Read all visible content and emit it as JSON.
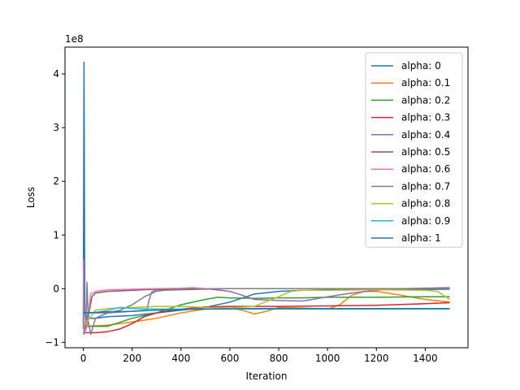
{
  "chart_data": {
    "type": "line",
    "title": "",
    "xlabel": "Iteration",
    "ylabel": "Loss",
    "y_offset_label": "1e8",
    "xlim": [
      -75,
      1575
    ],
    "ylim": [
      -1.1,
      4.5
    ],
    "x_ticks": [
      0,
      200,
      400,
      600,
      800,
      1000,
      1200,
      1400
    ],
    "y_ticks": [
      -1,
      0,
      1,
      2,
      3,
      4
    ],
    "legend_position": "upper right",
    "series": [
      {
        "name": "alpha: 0",
        "color": "#1f77b4",
        "points": [
          [
            0,
            -0.75
          ],
          [
            3,
            4.22
          ],
          [
            6,
            -0.4
          ],
          [
            10,
            -0.6
          ],
          [
            20,
            -0.55
          ],
          [
            50,
            -0.55
          ],
          [
            100,
            -0.52
          ],
          [
            200,
            -0.5
          ],
          [
            300,
            -0.45
          ],
          [
            400,
            -0.4
          ],
          [
            500,
            -0.35
          ],
          [
            600,
            -0.25
          ],
          [
            700,
            -0.1
          ],
          [
            800,
            -0.05
          ],
          [
            900,
            -0.03
          ],
          [
            1000,
            -0.02
          ],
          [
            1200,
            -0.02
          ],
          [
            1500,
            -0.01
          ]
        ]
      },
      {
        "name": "alpha: 0.1",
        "color": "#ff7f0e",
        "points": [
          [
            0,
            -0.7
          ],
          [
            100,
            -0.68
          ],
          [
            200,
            -0.62
          ],
          [
            300,
            -0.55
          ],
          [
            400,
            -0.45
          ],
          [
            500,
            -0.38
          ],
          [
            600,
            -0.36
          ],
          [
            650,
            -0.4
          ],
          [
            700,
            -0.47
          ],
          [
            750,
            -0.42
          ],
          [
            800,
            -0.35
          ],
          [
            900,
            -0.36
          ],
          [
            1000,
            -0.38
          ],
          [
            1050,
            -0.3
          ],
          [
            1100,
            -0.12
          ],
          [
            1150,
            -0.05
          ],
          [
            1200,
            -0.05
          ],
          [
            1300,
            -0.12
          ],
          [
            1400,
            -0.2
          ],
          [
            1500,
            -0.25
          ]
        ]
      },
      {
        "name": "alpha: 0.2",
        "color": "#2ca02c",
        "points": [
          [
            0,
            -0.7
          ],
          [
            100,
            -0.7
          ],
          [
            200,
            -0.55
          ],
          [
            300,
            -0.45
          ],
          [
            400,
            -0.3
          ],
          [
            500,
            -0.2
          ],
          [
            550,
            -0.16
          ],
          [
            600,
            -0.17
          ],
          [
            700,
            -0.18
          ],
          [
            800,
            -0.17
          ],
          [
            900,
            -0.17
          ],
          [
            1000,
            -0.16
          ],
          [
            1200,
            -0.16
          ],
          [
            1400,
            -0.15
          ],
          [
            1500,
            -0.15
          ]
        ]
      },
      {
        "name": "alpha: 0.3",
        "color": "#d62728",
        "points": [
          [
            0,
            -0.82
          ],
          [
            50,
            -0.82
          ],
          [
            100,
            -0.8
          ],
          [
            150,
            -0.75
          ],
          [
            200,
            -0.65
          ],
          [
            250,
            -0.52
          ],
          [
            300,
            -0.45
          ],
          [
            400,
            -0.38
          ],
          [
            500,
            -0.34
          ],
          [
            600,
            -0.33
          ],
          [
            800,
            -0.33
          ],
          [
            1000,
            -0.32
          ],
          [
            1200,
            -0.31
          ],
          [
            1400,
            -0.28
          ],
          [
            1500,
            -0.26
          ]
        ]
      },
      {
        "name": "alpha: 0.4",
        "color": "#9467bd",
        "points": [
          [
            0,
            -0.75
          ],
          [
            20,
            -0.45
          ],
          [
            50,
            -0.45
          ],
          [
            100,
            -0.45
          ],
          [
            200,
            -0.42
          ],
          [
            260,
            -0.4
          ],
          [
            270,
            -0.2
          ],
          [
            280,
            -0.06
          ],
          [
            300,
            -0.02
          ],
          [
            500,
            0.0
          ],
          [
            600,
            -0.05
          ],
          [
            650,
            -0.12
          ],
          [
            700,
            -0.2
          ],
          [
            800,
            -0.22
          ],
          [
            900,
            -0.23
          ],
          [
            1000,
            -0.15
          ],
          [
            1100,
            -0.08
          ],
          [
            1200,
            -0.03
          ],
          [
            1300,
            0.0
          ],
          [
            1500,
            0.02
          ]
        ]
      },
      {
        "name": "alpha: 0.5",
        "color": "#8c564b",
        "points": [
          [
            0,
            -0.75
          ],
          [
            15,
            -0.7
          ],
          [
            25,
            -0.4
          ],
          [
            35,
            -0.15
          ],
          [
            50,
            -0.08
          ],
          [
            100,
            -0.05
          ],
          [
            200,
            -0.03
          ],
          [
            300,
            -0.01
          ],
          [
            400,
            0.0
          ],
          [
            1500,
            0.0
          ]
        ]
      },
      {
        "name": "alpha: 0.6",
        "color": "#e377c2",
        "points": [
          [
            0,
            0.55
          ],
          [
            3,
            -0.85
          ],
          [
            15,
            -0.7
          ],
          [
            30,
            -0.1
          ],
          [
            50,
            -0.05
          ],
          [
            100,
            -0.02
          ],
          [
            300,
            0.0
          ],
          [
            400,
            0.01
          ],
          [
            450,
            0.02
          ],
          [
            500,
            0.0
          ],
          [
            1500,
            0.0
          ]
        ]
      },
      {
        "name": "alpha: 0.7",
        "color": "#7f7f7f",
        "points": [
          [
            0,
            -0.85
          ],
          [
            10,
            -0.7
          ],
          [
            15,
            0.12
          ],
          [
            20,
            -0.6
          ],
          [
            30,
            -0.85
          ],
          [
            50,
            -0.55
          ],
          [
            100,
            -0.45
          ],
          [
            150,
            -0.4
          ],
          [
            200,
            -0.3
          ],
          [
            250,
            -0.15
          ],
          [
            300,
            -0.05
          ],
          [
            330,
            -0.03
          ],
          [
            400,
            -0.02
          ],
          [
            600,
            0.0
          ],
          [
            1500,
            0.0
          ]
        ]
      },
      {
        "name": "alpha: 0.8",
        "color": "#bcbd22",
        "points": [
          [
            0,
            -0.7
          ],
          [
            50,
            -0.4
          ],
          [
            100,
            -0.37
          ],
          [
            200,
            -0.35
          ],
          [
            300,
            -0.33
          ],
          [
            400,
            -0.33
          ],
          [
            500,
            -0.35
          ],
          [
            600,
            -0.36
          ],
          [
            700,
            -0.33
          ],
          [
            800,
            -0.15
          ],
          [
            850,
            -0.05
          ],
          [
            900,
            -0.03
          ],
          [
            1000,
            -0.03
          ],
          [
            1200,
            -0.02
          ],
          [
            1400,
            -0.03
          ],
          [
            1450,
            -0.05
          ],
          [
            1500,
            -0.2
          ]
        ]
      },
      {
        "name": "alpha: 0.9",
        "color": "#17becf",
        "points": [
          [
            0,
            -0.45
          ],
          [
            50,
            -0.45
          ],
          [
            100,
            -0.4
          ],
          [
            150,
            -0.35
          ],
          [
            200,
            -0.37
          ],
          [
            300,
            -0.38
          ],
          [
            400,
            -0.38
          ],
          [
            600,
            -0.38
          ],
          [
            800,
            -0.38
          ],
          [
            1000,
            -0.38
          ],
          [
            1200,
            -0.38
          ],
          [
            1500,
            -0.38
          ]
        ]
      },
      {
        "name": "alpha: 1",
        "color": "#1f77b4",
        "points": [
          [
            0,
            -0.45
          ],
          [
            100,
            -0.43
          ],
          [
            200,
            -0.42
          ],
          [
            300,
            -0.4
          ],
          [
            400,
            -0.39
          ],
          [
            500,
            -0.38
          ],
          [
            700,
            -0.37
          ],
          [
            1000,
            -0.37
          ],
          [
            1300,
            -0.37
          ],
          [
            1500,
            -0.37
          ]
        ]
      }
    ]
  }
}
